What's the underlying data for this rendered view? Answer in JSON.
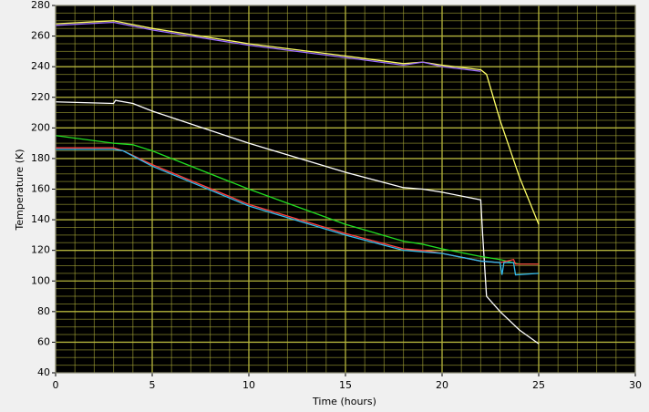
{
  "chart_data": {
    "type": "line",
    "x_label": "Time (hours)",
    "y_label": "Temperature (K)",
    "xlim": [
      0,
      30
    ],
    "xticks": [
      0,
      5,
      10,
      15,
      20,
      25,
      30
    ],
    "ylim": [
      40,
      280
    ],
    "yticks": [
      40,
      60,
      80,
      100,
      120,
      140,
      160,
      180,
      200,
      220,
      240,
      260,
      280
    ],
    "grid": true,
    "background": "#000000",
    "grid_color": "#b4b43c",
    "series": [
      {
        "color": "#ffff66",
        "x": [
          0,
          3,
          5,
          10,
          15,
          18,
          19,
          20,
          22,
          22.3,
          23,
          24,
          25
        ],
        "values": [
          268,
          270,
          265,
          255,
          247,
          242,
          243,
          241,
          238,
          235,
          205,
          168,
          137
        ]
      },
      {
        "color": "#9b6cff",
        "x": [
          0,
          3,
          5,
          10,
          15,
          18,
          19,
          20,
          22
        ],
        "values": [
          267,
          269,
          264,
          254,
          246,
          241,
          243,
          240,
          237
        ]
      },
      {
        "color": "#ffffff",
        "x": [
          0,
          3,
          3.1,
          4,
          5,
          10,
          15,
          18,
          19,
          20,
          22,
          22.1,
          22.3,
          23,
          24,
          25
        ],
        "values": [
          217,
          216,
          218,
          216,
          211,
          190,
          171,
          161,
          160,
          158,
          153,
          130,
          90,
          80,
          68,
          59
        ]
      },
      {
        "color": "#22dd22",
        "x": [
          0,
          3,
          4,
          5,
          10,
          15,
          18,
          19,
          20,
          22,
          23,
          24,
          25
        ],
        "values": [
          195,
          190,
          189,
          185,
          160,
          137,
          126,
          124,
          121,
          116,
          114,
          111,
          111
        ]
      },
      {
        "color": "#ff4040",
        "x": [
          0,
          3,
          3.5,
          5,
          10,
          15,
          18,
          19,
          20,
          22,
          23,
          23.7,
          23.8,
          24,
          25
        ],
        "values": [
          187,
          187,
          185,
          176,
          150,
          131,
          121,
          120,
          118,
          113,
          112,
          114,
          111,
          111,
          111
        ]
      },
      {
        "color": "#33bbee",
        "x": [
          0,
          3,
          3.5,
          5,
          10,
          15,
          18,
          20,
          22,
          23,
          23.1,
          23.2,
          23.7,
          23.8,
          25
        ],
        "values": [
          186,
          186,
          185,
          175,
          149,
          130,
          120,
          118,
          113,
          112,
          104,
          112,
          112,
          104,
          105
        ]
      }
    ]
  }
}
